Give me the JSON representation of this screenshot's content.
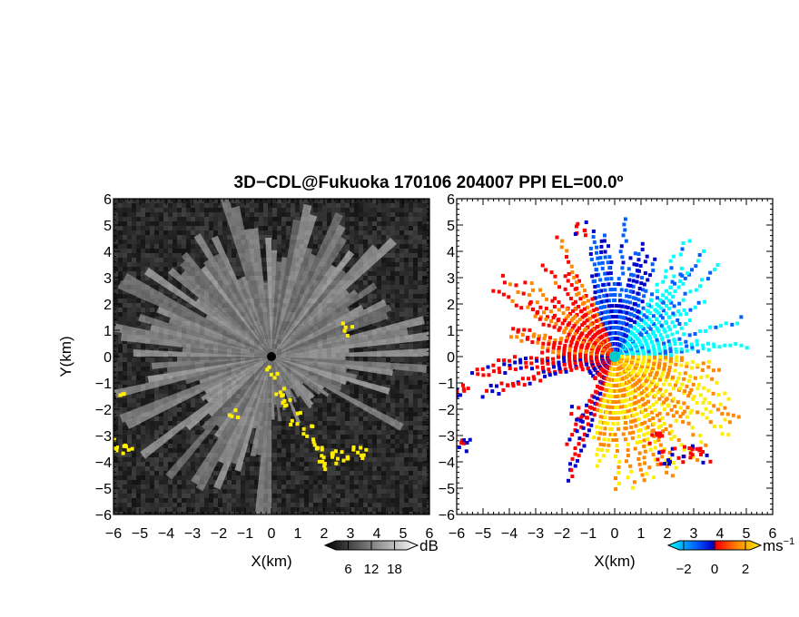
{
  "chart_data": [
    {
      "type": "heatmap",
      "title": "3D−CDL@Fukuoka 170106 204007 PPI EL=00.0º",
      "xlabel": "X(km)",
      "ylabel": "Y(km)",
      "xlim": [
        -6,
        6
      ],
      "ylim": [
        -6,
        6
      ],
      "x_ticks": [
        "−6",
        "−5",
        "−4",
        "−3",
        "−2",
        "−1",
        "0",
        "1",
        "2",
        "3",
        "4",
        "5",
        "6"
      ],
      "y_ticks": [
        "6",
        "5",
        "4",
        "3",
        "2",
        "1",
        "0",
        "−1",
        "−2",
        "−3",
        "−4",
        "−5",
        "−6"
      ],
      "field": "backscatter intensity",
      "colorbar": {
        "unit": "dB",
        "ticks": [
          "6",
          "12",
          "18"
        ],
        "tick_values": [
          6,
          12,
          18
        ],
        "range": [
          0,
          24
        ],
        "colormap": "grayscale"
      },
      "center": [
        0,
        0
      ],
      "flag_color": "#ffee00",
      "background_color": "#151515"
    },
    {
      "type": "heatmap",
      "xlabel": "X(km)",
      "xlim": [
        -6,
        6
      ],
      "ylim": [
        -6,
        6
      ],
      "x_ticks": [
        "−6",
        "−5",
        "−4",
        "−3",
        "−2",
        "−1",
        "0",
        "1",
        "2",
        "3",
        "4",
        "5",
        "6"
      ],
      "y_ticks": [
        "6",
        "5",
        "4",
        "3",
        "2",
        "1",
        "0",
        "−1",
        "−2",
        "−3",
        "−4",
        "−5",
        "−6"
      ],
      "field": "radial velocity",
      "colorbar": {
        "unit": "ms",
        "unit_exponent": "−1",
        "ticks": [
          "−2",
          "0",
          "2"
        ],
        "tick_values": [
          -2,
          0,
          2
        ],
        "range": [
          -3,
          3
        ],
        "colormap": [
          "#00ffff",
          "#0060ff",
          "#0000cc",
          "#ff0000",
          "#ff8800",
          "#ffee00"
        ]
      },
      "center": [
        0,
        0
      ],
      "center_marker_color": "#00cccc",
      "background_color": "#ffffff"
    }
  ]
}
